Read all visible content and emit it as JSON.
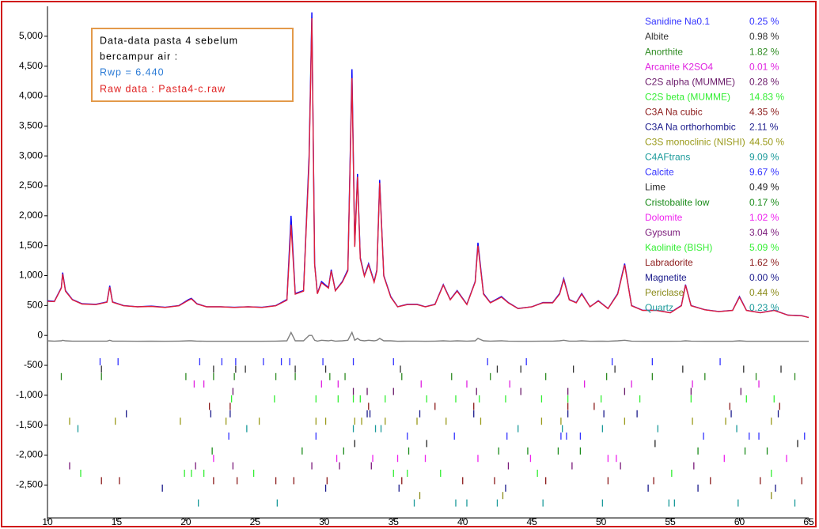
{
  "chart_data": {
    "type": "line",
    "xlim": [
      10,
      65
    ],
    "ylim": [
      -3050,
      5500
    ],
    "xticks": [
      10,
      15,
      20,
      25,
      30,
      35,
      40,
      45,
      50,
      55,
      60,
      65
    ],
    "yticks": [
      {
        "value": -2500,
        "label": "-2,500"
      },
      {
        "value": -2000,
        "label": "-2,000"
      },
      {
        "value": -1500,
        "label": "-1,500"
      },
      {
        "value": -1000,
        "label": "-1,000"
      },
      -500,
      0,
      500,
      {
        "value": 1000,
        "label": "1,000"
      },
      {
        "value": 1500,
        "label": "1,500"
      },
      {
        "value": 2000,
        "label": "2,000"
      },
      {
        "value": 2500,
        "label": "2,500"
      },
      {
        "value": 3000,
        "label": "3,000"
      },
      {
        "value": 3500,
        "label": "3,500"
      },
      {
        "value": 4000,
        "label": "4,000"
      },
      {
        "value": 4500,
        "label": "4,500"
      },
      {
        "value": 5000,
        "label": "5,000"
      }
    ],
    "annotations": [
      "Data-data pasta 4 sebelum",
      "bercampur air :",
      "Rwp =  6.440",
      "Raw data : Pasta4-c.raw"
    ],
    "x": [
      10,
      10.5,
      11,
      11.1,
      11.3,
      11.8,
      12.5,
      13.5,
      14.3,
      14.5,
      14.7,
      15.5,
      16.5,
      17.5,
      18.5,
      19.5,
      20.2,
      20.4,
      20.8,
      21.5,
      22.5,
      23.5,
      24.5,
      25.5,
      26.5,
      27.3,
      27.6,
      27.9,
      28.5,
      28.9,
      29.1,
      29.3,
      29.5,
      29.8,
      30.3,
      30.5,
      30.8,
      31.3,
      31.7,
      32.0,
      32.2,
      32.4,
      32.6,
      32.9,
      33.2,
      33.6,
      33.8,
      34.0,
      34.3,
      34.8,
      35.3,
      36.0,
      36.7,
      37.3,
      38.0,
      38.6,
      39.1,
      39.6,
      40.3,
      40.9,
      41.1,
      41.5,
      42.0,
      42.8,
      43.3,
      44.0,
      45.0,
      45.8,
      46.5,
      47.0,
      47.3,
      47.7,
      48.2,
      48.6,
      49.2,
      49.8,
      50.5,
      51.2,
      51.7,
      52.2,
      53.0,
      54.0,
      55.0,
      55.8,
      56.1,
      56.5,
      57.5,
      58.5,
      59.5,
      60.0,
      60.5,
      61.5,
      62.5,
      63.5,
      64.5,
      65
    ],
    "series": [
      {
        "color": "#0000ff",
        "values": [
          580,
          570,
          800,
          1050,
          750,
          600,
          530,
          520,
          560,
          830,
          560,
          500,
          480,
          490,
          470,
          500,
          600,
          620,
          530,
          480,
          480,
          470,
          480,
          470,
          500,
          600,
          2000,
          700,
          750,
          3000,
          5400,
          1200,
          700,
          900,
          800,
          1100,
          750,
          900,
          1100,
          4450,
          1500,
          2700,
          1300,
          1000,
          1200,
          900,
          1100,
          2600,
          1000,
          650,
          480,
          520,
          520,
          480,
          520,
          850,
          600,
          750,
          520,
          900,
          1550,
          700,
          550,
          650,
          550,
          450,
          480,
          550,
          550,
          700,
          950,
          600,
          550,
          700,
          480,
          580,
          450,
          700,
          1200,
          500,
          420,
          420,
          380,
          500,
          850,
          500,
          430,
          400,
          420,
          650,
          420,
          380,
          420,
          340,
          330,
          300
        ]
      },
      {
        "color": "#e0203a",
        "values": [
          570,
          565,
          790,
          1030,
          740,
          595,
          525,
          515,
          555,
          810,
          555,
          495,
          478,
          485,
          468,
          495,
          590,
          610,
          525,
          478,
          478,
          468,
          478,
          468,
          495,
          590,
          1850,
          690,
          740,
          2900,
          5300,
          1180,
          695,
          880,
          790,
          1080,
          745,
          890,
          1080,
          4300,
          1480,
          2650,
          1280,
          990,
          1180,
          890,
          1080,
          2550,
          990,
          640,
          478,
          515,
          515,
          478,
          515,
          840,
          595,
          740,
          515,
          890,
          1500,
          690,
          545,
          640,
          545,
          448,
          478,
          545,
          545,
          690,
          930,
          595,
          545,
          690,
          478,
          575,
          448,
          690,
          1180,
          495,
          418,
          418,
          378,
          495,
          840,
          495,
          428,
          398,
          418,
          640,
          418,
          378,
          418,
          338,
          328,
          298
        ]
      },
      {
        "color": "#7f7f7f",
        "values": [
          -90,
          -95,
          -90,
          -80,
          -90,
          -95,
          -95,
          -95,
          -95,
          -80,
          -95,
          -95,
          -98,
          -95,
          -98,
          -95,
          -90,
          -90,
          -95,
          -98,
          -98,
          -98,
          -98,
          -98,
          -95,
          -90,
          50,
          -90,
          -90,
          0,
          0,
          -80,
          -95,
          -80,
          -90,
          -80,
          -95,
          -90,
          -80,
          50,
          -80,
          -50,
          -80,
          -90,
          -80,
          -90,
          -80,
          -50,
          -90,
          -90,
          -98,
          -95,
          -95,
          -98,
          -95,
          -90,
          -95,
          -90,
          -95,
          -90,
          -50,
          -90,
          -95,
          -90,
          -95,
          -98,
          -98,
          -95,
          -95,
          -90,
          -80,
          -95,
          -95,
          -90,
          -98,
          -95,
          -98,
          -90,
          -80,
          -95,
          -98,
          -98,
          -98,
          -95,
          -90,
          -95,
          -98,
          -98,
          -98,
          -90,
          -98,
          -98,
          -98,
          -98,
          -98,
          -98
        ]
      }
    ],
    "phases": [
      {
        "name": "Sanidine Na0.1",
        "color": "#3333ff",
        "value": 0.25,
        "value_label": "0.25 %",
        "reflections": [
          13.8,
          15.1,
          21.0,
          22.6,
          23.6,
          25.6,
          26.9,
          27.5,
          29.9,
          32.1,
          35.0,
          41.8,
          44.6,
          50.8,
          53.7,
          58.6
        ]
      },
      {
        "name": "Albite",
        "color": "#333333",
        "value": 0.98,
        "value_label": "0.98 %",
        "reflections": [
          13.9,
          22.0,
          23.6,
          24.3,
          27.9,
          30.1,
          35.5,
          42.5,
          44.2,
          48.0,
          51.0,
          55.9,
          60.3,
          63.0
        ]
      },
      {
        "name": "Anorthite",
        "color": "#2e8b22",
        "value": 1.82,
        "value_label": "1.82 %",
        "reflections": [
          11.0,
          13.9,
          20.0,
          22.0,
          23.5,
          26.5,
          27.9,
          30.4,
          31.5,
          35.6,
          39.2,
          42.0,
          46.0,
          50.4,
          53.7,
          57.5,
          61.2,
          64.0
        ]
      },
      {
        "name": "Arcanite K2SO4",
        "color": "#e020e0",
        "value": 0.01,
        "value_label": "0.01 %",
        "reflections": [
          20.6,
          21.3,
          29.8,
          31.0,
          37.0,
          40.3,
          43.4,
          48.8,
          52.2,
          56.6,
          61.4
        ]
      },
      {
        "name": "C2S alpha (MUMME)",
        "color": "#6a1a6a",
        "value": 0.28,
        "value_label": "0.28 %",
        "reflections": [
          23.4,
          32.1,
          33.1,
          35.0,
          41.0,
          44.2,
          47.6,
          51.7,
          56.5,
          60.1
        ]
      },
      {
        "name": "C2S beta (MUMME)",
        "color": "#33ee33",
        "value": 14.83,
        "value_label": "14.83 %",
        "reflections": [
          23.3,
          26.4,
          29.4,
          31.0,
          32.1,
          32.6,
          34.4,
          37.4,
          39.5,
          41.2,
          43.1,
          45.7,
          47.6,
          50.0,
          52.8,
          56.5,
          60.5,
          62.5
        ]
      },
      {
        "name": "C3A Na cubic",
        "color": "#8b1a1a",
        "value": 4.35,
        "value_label": "4.35 %",
        "reflections": [
          21.7,
          23.2,
          33.2,
          38.0,
          40.8,
          47.6,
          49.5,
          59.3,
          62.9
        ]
      },
      {
        "name": "C3A Na orthorhombic",
        "color": "#1a1a8b",
        "value": 2.11,
        "value_label": "2.11 %",
        "reflections": [
          15.7,
          21.8,
          23.2,
          33.1,
          33.3,
          36.9,
          40.8,
          47.6,
          50.2,
          52.6,
          59.4,
          62.8
        ]
      },
      {
        "name": "C3S monoclinic (NISHI)",
        "color": "#9a9a1a",
        "value": 44.5,
        "value_label": "44.50 %",
        "reflections": [
          11.6,
          14.9,
          19.6,
          22.9,
          25.3,
          29.4,
          30.1,
          32.2,
          32.7,
          34.4,
          36.7,
          38.8,
          41.3,
          45.7,
          47.1,
          51.7,
          56.6,
          59.0,
          62.3
        ]
      },
      {
        "name": "C4AFtrans",
        "color": "#1a9a9a",
        "value": 9.09,
        "value_label": "9.09 %",
        "reflections": [
          12.2,
          24.4,
          32.1,
          33.7,
          34.1,
          44.0,
          47.2,
          50.1,
          54.1,
          59.8
        ]
      },
      {
        "name": "Calcite",
        "color": "#3333ff",
        "value": 9.67,
        "value_label": "9.67 %",
        "reflections": [
          23.1,
          29.4,
          36.0,
          39.4,
          43.2,
          47.1,
          47.5,
          48.5,
          57.4,
          60.7,
          61.4,
          64.7
        ]
      },
      {
        "name": "Lime",
        "color": "#222222",
        "value": 0.49,
        "value_label": "0.49 %",
        "reflections": [
          32.2,
          37.4,
          53.9,
          64.2
        ]
      },
      {
        "name": "Cristobalite low",
        "color": "#1a8b1a",
        "value": 0.17,
        "value_label": "0.17 %",
        "reflections": [
          21.9,
          28.4,
          31.4,
          36.1,
          42.6,
          44.7,
          46.9,
          48.5,
          57.0,
          60.4,
          62.0
        ]
      },
      {
        "name": "Dolomite",
        "color": "#ee22ee",
        "value": 1.02,
        "value_label": "1.02 %",
        "reflections": [
          22.0,
          30.9,
          33.5,
          35.3,
          37.3,
          41.1,
          44.9,
          50.5,
          51.1,
          58.9,
          63.4
        ]
      },
      {
        "name": "Gypsum",
        "color": "#7a1a7a",
        "value": 3.04,
        "value_label": "3.04 %",
        "reflections": [
          11.6,
          20.7,
          23.4,
          29.1,
          31.1,
          33.4,
          43.3,
          47.9,
          51.4,
          56.7
        ]
      },
      {
        "name": "Kaolinite (BISH)",
        "color": "#33ee33",
        "value": 5.09,
        "value_label": "5.09 %",
        "reflections": [
          12.4,
          19.9,
          20.4,
          21.3,
          24.9,
          35.0,
          36.0,
          38.4,
          45.4,
          55.1,
          62.3
        ]
      },
      {
        "name": "Labradorite",
        "color": "#8b1a1a",
        "value": 1.62,
        "value_label": "1.62 %",
        "reflections": [
          13.9,
          15.2,
          22.0,
          23.7,
          26.5,
          27.8,
          30.2,
          35.6,
          40.0,
          42.3,
          46.0,
          50.5,
          53.8,
          57.9,
          61.5,
          64.5
        ]
      },
      {
        "name": "Magnetite",
        "color": "#1a1a8b",
        "value": 0,
        "value_label": "0.00 %",
        "reflections": [
          18.3,
          30.1,
          35.4,
          43.1,
          53.4,
          57.0,
          62.6
        ]
      },
      {
        "name": "Periclase",
        "color": "#8b8b1a",
        "value": 0.44,
        "value_label": "0.44 %",
        "reflections": [
          36.9,
          42.9,
          62.3
        ]
      },
      {
        "name": "Quartz",
        "color": "#1a9a9a",
        "value": 0.23,
        "value_label": "0.23 %",
        "reflections": [
          20.9,
          26.6,
          36.5,
          39.5,
          40.3,
          42.5,
          45.8,
          50.1,
          54.9,
          55.3,
          59.9,
          64.0
        ]
      }
    ]
  }
}
